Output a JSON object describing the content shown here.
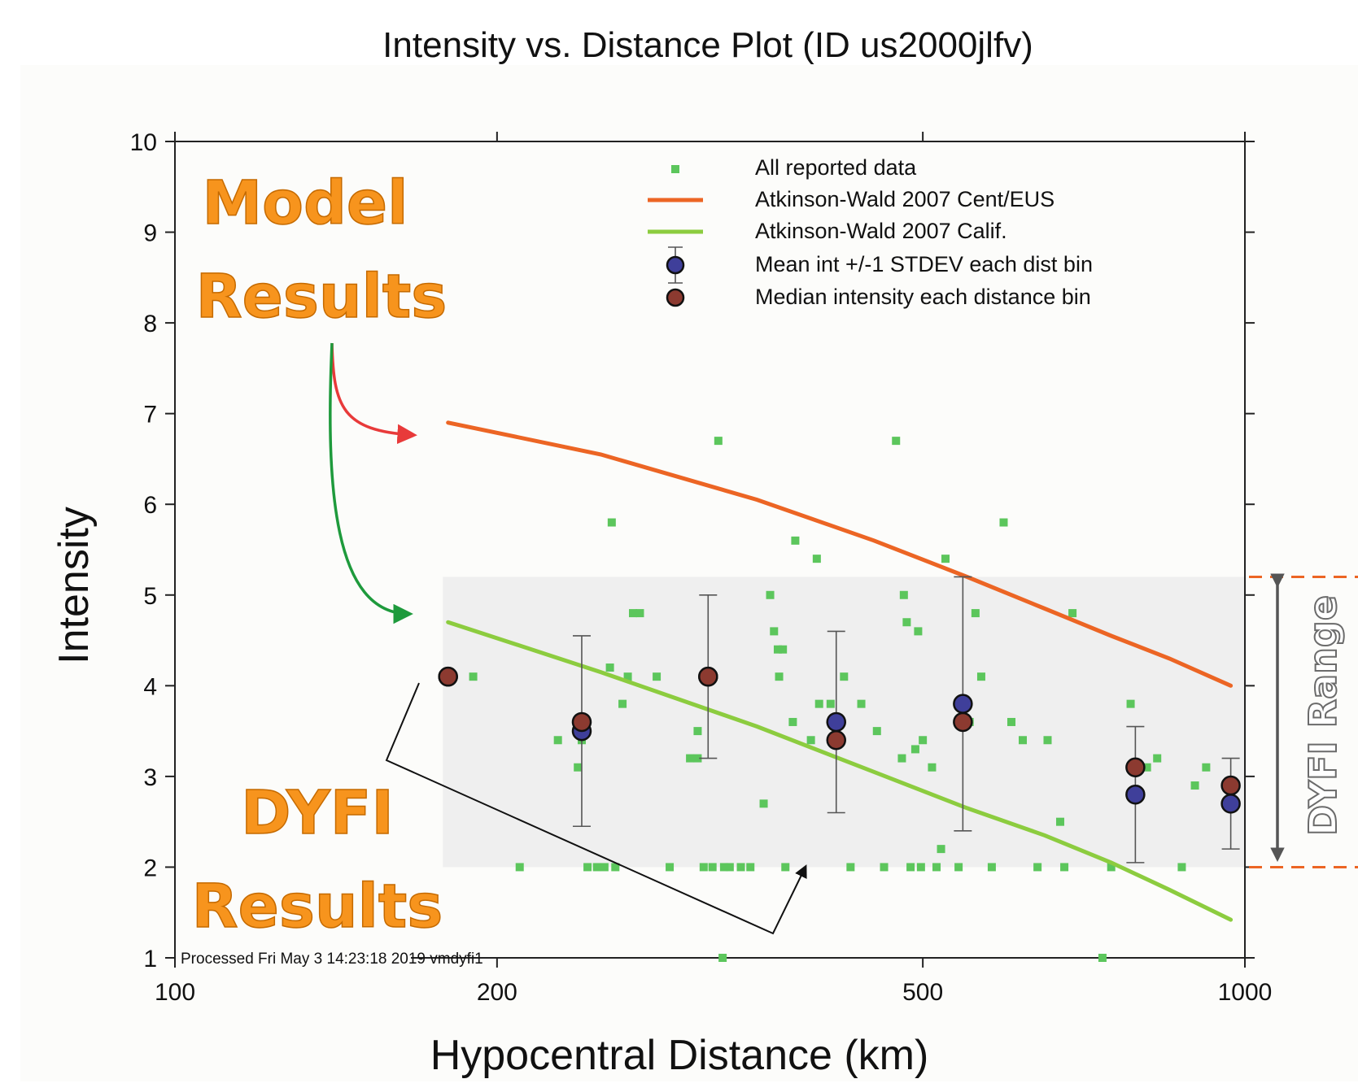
{
  "chart_data": {
    "type": "scatter",
    "title": "Intensity vs. Distance Plot (ID us2000jlfv)",
    "xlabel": "Hypocentral Distance (km)",
    "ylabel": "Intensity",
    "x_scale": "log",
    "xlim": [
      100,
      1000
    ],
    "ylim": [
      1,
      10
    ],
    "x_ticks": [
      100,
      200,
      500,
      1000
    ],
    "y_ticks": [
      1,
      2,
      3,
      4,
      5,
      6,
      7,
      8,
      9,
      10
    ],
    "legend_placement": "top-right",
    "footer": "Processed Fri May  3 14:23:18 2019 vmdyfi1",
    "series": [
      {
        "name": "All reported data",
        "kind": "points",
        "color": "#5cc65c",
        "points": [
          [
            190,
            4.1
          ],
          [
            210,
            2.0
          ],
          [
            228,
            3.4
          ],
          [
            238,
            3.1
          ],
          [
            240,
            3.4
          ],
          [
            243,
            2.0
          ],
          [
            248,
            2.0
          ],
          [
            252,
            2.0
          ],
          [
            255,
            4.2
          ],
          [
            256,
            5.8
          ],
          [
            258,
            2.0
          ],
          [
            262,
            3.8
          ],
          [
            265,
            4.1
          ],
          [
            268,
            4.8
          ],
          [
            272,
            4.8
          ],
          [
            282,
            4.1
          ],
          [
            290,
            2.0
          ],
          [
            303,
            3.2
          ],
          [
            308,
            3.5
          ],
          [
            308,
            3.2
          ],
          [
            312,
            2.0
          ],
          [
            318,
            2.0
          ],
          [
            322,
            6.7
          ],
          [
            326,
            2.0
          ],
          [
            330,
            2.0
          ],
          [
            338,
            2.0
          ],
          [
            345,
            2.0
          ],
          [
            355,
            2.7
          ],
          [
            360,
            5.0
          ],
          [
            363,
            4.6
          ],
          [
            366,
            4.4
          ],
          [
            367,
            4.1
          ],
          [
            370,
            4.4
          ],
          [
            372,
            2.0
          ],
          [
            378,
            3.6
          ],
          [
            380,
            5.6
          ],
          [
            393,
            3.4
          ],
          [
            398,
            5.4
          ],
          [
            400,
            3.8
          ],
          [
            410,
            3.8
          ],
          [
            415,
            3.6
          ],
          [
            422,
            4.1
          ],
          [
            428,
            2.0
          ],
          [
            438,
            3.8
          ],
          [
            453,
            3.5
          ],
          [
            460,
            2.0
          ],
          [
            472,
            6.7
          ],
          [
            478,
            3.2
          ],
          [
            480,
            5.0
          ],
          [
            483,
            4.7
          ],
          [
            487,
            2.0
          ],
          [
            492,
            3.3
          ],
          [
            495,
            4.6
          ],
          [
            498,
            2.0
          ],
          [
            500,
            3.4
          ],
          [
            510,
            3.1
          ],
          [
            515,
            2.0
          ],
          [
            520,
            2.2
          ],
          [
            525,
            5.4
          ],
          [
            540,
            2.0
          ],
          [
            553,
            3.6
          ],
          [
            560,
            4.8
          ],
          [
            567,
            4.1
          ],
          [
            580,
            2.0
          ],
          [
            595,
            5.8
          ],
          [
            605,
            3.6
          ],
          [
            620,
            3.4
          ],
          [
            640,
            2.0
          ],
          [
            654,
            3.4
          ],
          [
            672,
            2.5
          ],
          [
            678,
            2.0
          ],
          [
            690,
            4.8
          ],
          [
            736,
            1.0
          ],
          [
            750,
            2.0
          ],
          [
            782,
            3.8
          ],
          [
            810,
            3.1
          ],
          [
            828,
            3.2
          ],
          [
            873,
            2.0
          ],
          [
            898,
            2.9
          ],
          [
            920,
            3.1
          ],
          [
            325,
            1.0
          ]
        ]
      },
      {
        "name": "Atkinson-Wald 2007 Cent/EUS",
        "kind": "line",
        "color": "#ec6524",
        "x": [
          180,
          250,
          350,
          450,
          550,
          650,
          750,
          850,
          970
        ],
        "y": [
          6.9,
          6.55,
          6.05,
          5.6,
          5.2,
          4.85,
          4.55,
          4.3,
          4.0
        ]
      },
      {
        "name": "Atkinson-Wald 2007 Calif.",
        "kind": "line",
        "color": "#8ccc3f",
        "x": [
          180,
          250,
          350,
          450,
          550,
          650,
          750,
          850,
          970
        ],
        "y": [
          4.7,
          4.15,
          3.55,
          3.05,
          2.65,
          2.35,
          2.05,
          1.75,
          1.42
        ]
      },
      {
        "name": "Mean int +/-1 STDEV each dist bin",
        "kind": "errorbar",
        "color": "#3f3f9a",
        "x": [
          180,
          240,
          315,
          415,
          545,
          790,
          970
        ],
        "y": [
          4.1,
          3.5,
          4.1,
          3.6,
          3.8,
          2.8,
          2.7
        ],
        "yerr_low": [
          null,
          2.45,
          3.2,
          2.6,
          2.4,
          2.05,
          2.2
        ],
        "yerr_high": [
          null,
          4.55,
          5.0,
          4.6,
          5.2,
          3.55,
          3.2
        ]
      },
      {
        "name": "Median intensity each distance bin",
        "kind": "points",
        "color": "#8c3a30",
        "x": [
          180,
          240,
          315,
          415,
          545,
          790,
          970
        ],
        "y": [
          4.1,
          3.6,
          4.1,
          3.4,
          3.6,
          3.1,
          2.9
        ]
      }
    ],
    "range_band": {
      "y_low": 2.0,
      "y_high": 5.2,
      "x_start": 178
    }
  },
  "annotations": {
    "model_line1": "Model",
    "model_line2": "Results",
    "dyfi_line1": "DYFI",
    "dyfi_line2": "Results",
    "range_label": "DYFI Range"
  }
}
